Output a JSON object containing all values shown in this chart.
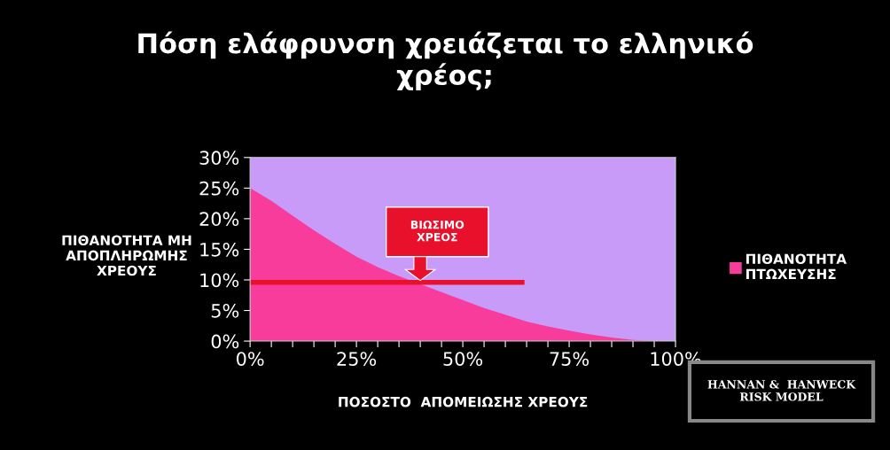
{
  "chart_data": {
    "type": "area",
    "title": "Πόση ελάφρυνση χρειάζεται το ελληνικό\nχρέος;",
    "xlabel": "ΠΟΣΟΣΤΟ  ΑΠΟΜΕΙΩΣΗΣ ΧΡΕΟΥΣ",
    "ylabel": "ΠΙΘΑΝΟΤΗΤΑ ΜΗ\nΑΠΟΠΛΗΡΩΜΗΣ\nΧΡΕΟΥΣ",
    "x": [
      0,
      5,
      10,
      15,
      20,
      25,
      30,
      35,
      40,
      45,
      50,
      55,
      60,
      65,
      70,
      75,
      80,
      85,
      90,
      95,
      100
    ],
    "series": [
      {
        "name": "ΠΙΘΑΝΟΤΗΤΑ\nΠΤΩΧΕΥΣΗΣ",
        "color": "#f73c9c",
        "values": [
          25,
          22.9,
          20.5,
          18.1,
          15.9,
          13.8,
          12.1,
          10.6,
          9.3,
          8.0,
          6.7,
          5.4,
          4.3,
          3.2,
          2.4,
          1.7,
          1.1,
          0.6,
          0.2,
          0,
          0
        ]
      },
      {
        "type": "line",
        "color": "#e8102a",
        "x": [
          0,
          64.5
        ],
        "values": [
          9.6,
          9.6
        ]
      }
    ],
    "xlim": [
      0,
      100
    ],
    "xticks": [
      {
        "value": 0,
        "label": "0%"
      },
      {
        "value": 5,
        "label": null
      },
      {
        "value": 10,
        "label": null
      },
      {
        "value": 15,
        "label": null
      },
      {
        "value": 20,
        "label": null
      },
      {
        "value": 25,
        "label": "25%"
      },
      {
        "value": 30,
        "label": null
      },
      {
        "value": 35,
        "label": null
      },
      {
        "value": 40,
        "label": null
      },
      {
        "value": 45,
        "label": null
      },
      {
        "value": 50,
        "label": "50%"
      },
      {
        "value": 55,
        "label": null
      },
      {
        "value": 60,
        "label": null
      },
      {
        "value": 65,
        "label": null
      },
      {
        "value": 70,
        "label": null
      },
      {
        "value": 75,
        "label": "75%"
      },
      {
        "value": 80,
        "label": null
      },
      {
        "value": 85,
        "label": null
      },
      {
        "value": 90,
        "label": null
      },
      {
        "value": 95,
        "label": null
      },
      {
        "value": 100,
        "label": "100%"
      }
    ],
    "ylim": [
      0,
      30
    ],
    "yticks": [
      {
        "value": 0,
        "label": "0%"
      },
      {
        "value": 5,
        "label": "5%"
      },
      {
        "value": 10,
        "label": "10%"
      },
      {
        "value": 15,
        "label": "15%"
      },
      {
        "value": 20,
        "label": "20%"
      },
      {
        "value": 25,
        "label": "25%"
      },
      {
        "value": 30,
        "label": "30%"
      }
    ],
    "annotations": [
      "ΒΙΩΣΙΜΟ\nΧΡΕΟΣ",
      "HANNAN &  HANWECK\nRISK MODEL"
    ],
    "legend": "right",
    "grid": false
  }
}
